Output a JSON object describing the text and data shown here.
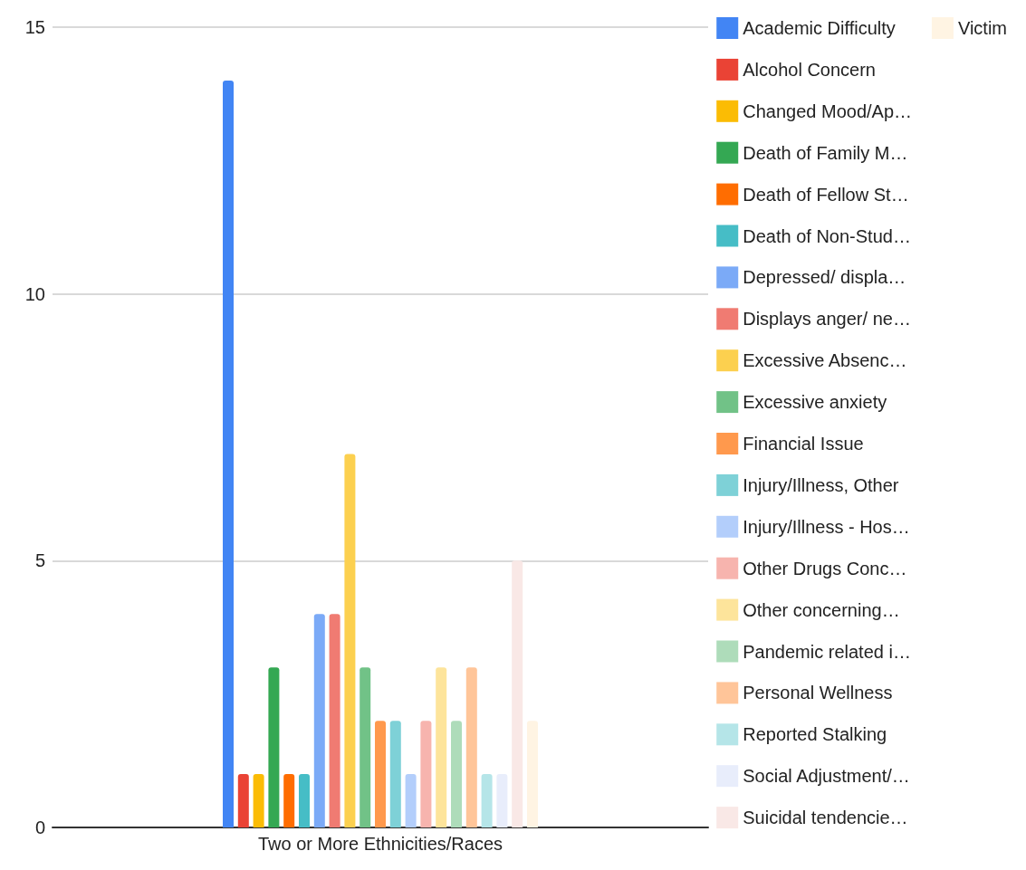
{
  "chart_data": {
    "type": "bar",
    "categories": [
      "Two or More Ethnicities/Races"
    ],
    "ylim": [
      0,
      15
    ],
    "yticks": [
      0,
      5,
      10,
      15
    ],
    "grid": "y",
    "legend": "right",
    "series": [
      {
        "name": "Academic Difficulty",
        "color": "#4285f4",
        "values": [
          14
        ]
      },
      {
        "name": "Alcohol Concern",
        "color": "#ea4335",
        "values": [
          1
        ]
      },
      {
        "name": "Changed Mood/Ap…",
        "color": "#fbbc04",
        "values": [
          1
        ]
      },
      {
        "name": "Death of Family M…",
        "color": "#34a853",
        "values": [
          3
        ]
      },
      {
        "name": "Death of Fellow St…",
        "color": "#ff6d01",
        "values": [
          1
        ]
      },
      {
        "name": "Death of Non-Stud…",
        "color": "#46bdc6",
        "values": [
          1
        ]
      },
      {
        "name": "Depressed/ displa…",
        "color": "#7baaf7",
        "values": [
          4
        ]
      },
      {
        "name": "Displays anger/ ne…",
        "color": "#f07b72",
        "values": [
          4
        ]
      },
      {
        "name": "Excessive Absenc…",
        "color": "#fcd04f",
        "values": [
          7
        ]
      },
      {
        "name": "Excessive anxiety",
        "color": "#71c287",
        "values": [
          3
        ]
      },
      {
        "name": "Financial Issue",
        "color": "#ff994d",
        "values": [
          2
        ]
      },
      {
        "name": "Injury/Illness, Other",
        "color": "#7ed1d7",
        "values": [
          2
        ]
      },
      {
        "name": "Injury/Illness - Hos…",
        "color": "#b3cefb",
        "values": [
          1
        ]
      },
      {
        "name": "Other Drugs Conc…",
        "color": "#f7b4ae",
        "values": [
          2
        ]
      },
      {
        "name": "Other concerning…",
        "color": "#fde49b",
        "values": [
          3
        ]
      },
      {
        "name": "Pandemic related i…",
        "color": "#aedcba",
        "values": [
          2
        ]
      },
      {
        "name": "Personal Wellness",
        "color": "#ffc599",
        "values": [
          3
        ]
      },
      {
        "name": "Reported Stalking",
        "color": "#b5e5e8",
        "values": [
          1
        ]
      },
      {
        "name": "Social Adjustment/…",
        "color": "#e8edfb",
        "values": [
          1
        ]
      },
      {
        "name": "Suicidal tendencie…",
        "color": "#f9e8e6",
        "values": [
          5
        ]
      },
      {
        "name": "Victim",
        "color": "#fff4e3",
        "values": [
          2
        ]
      }
    ]
  }
}
